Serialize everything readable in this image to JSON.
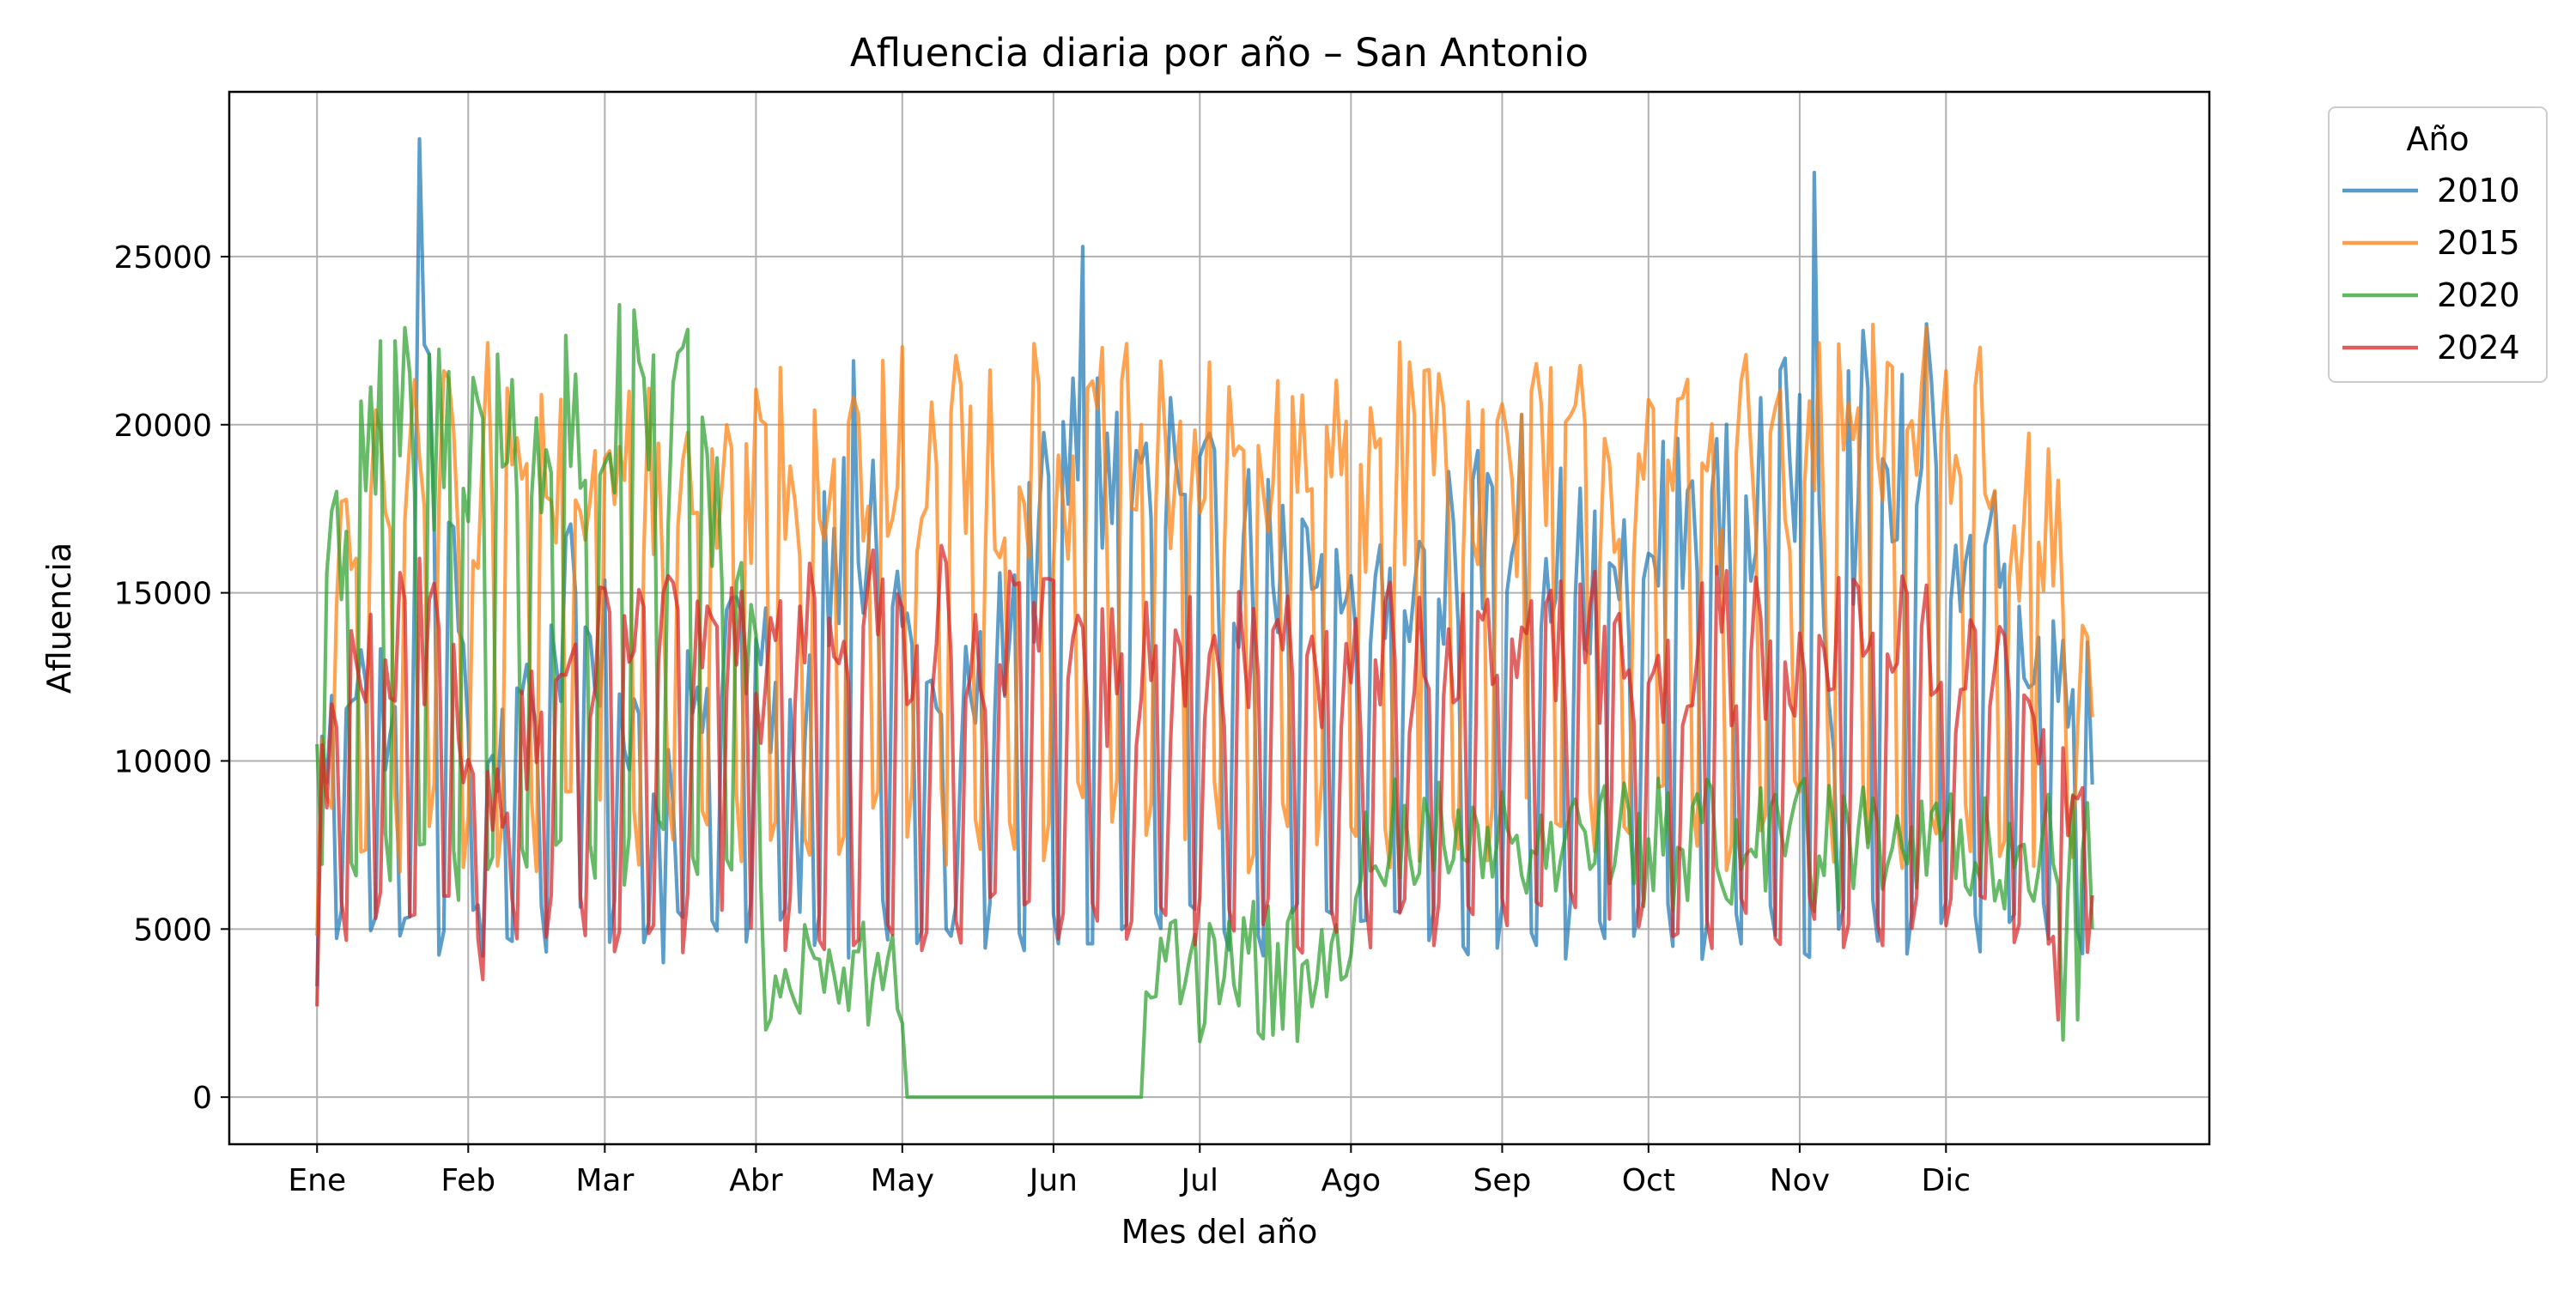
{
  "chart_data": {
    "type": "line",
    "title": "Afluencia diaria por año – San Antonio",
    "xlabel": "Mes del año",
    "ylabel": "Afluencia",
    "x_unit": "day of year",
    "x_ticks": [
      {
        "day": 1,
        "label": "Ene"
      },
      {
        "day": 32,
        "label": "Feb"
      },
      {
        "day": 60,
        "label": "Mar"
      },
      {
        "day": 91,
        "label": "Abr"
      },
      {
        "day": 121,
        "label": "May"
      },
      {
        "day": 152,
        "label": "Jun"
      },
      {
        "day": 182,
        "label": "Jul"
      },
      {
        "day": 213,
        "label": "Ago"
      },
      {
        "day": 244,
        "label": "Sep"
      },
      {
        "day": 274,
        "label": "Oct"
      },
      {
        "day": 305,
        "label": "Nov"
      },
      {
        "day": 335,
        "label": "Dic"
      }
    ],
    "y_ticks": [
      0,
      5000,
      10000,
      15000,
      20000,
      25000
    ],
    "xlim": [
      -17,
      389
    ],
    "ylim": [
      -1400,
      29900
    ],
    "grid": true,
    "legend": {
      "title": "Año",
      "placement": "outside-top-right"
    },
    "series": [
      {
        "name": "2010",
        "color": "#1f77b4",
        "stats": {
          "weekday_level": 14500,
          "weekend_level": 5000
        },
        "anchors": [
          [
            1,
            3300
          ],
          [
            10,
            13300
          ],
          [
            18,
            4800
          ],
          [
            22,
            28500
          ],
          [
            35,
            4200
          ],
          [
            54,
            15000
          ],
          [
            72,
            4000
          ],
          [
            85,
            14500
          ],
          [
            100,
            5500
          ],
          [
            105,
            18000
          ],
          [
            111,
            21900
          ],
          [
            121,
            14000
          ],
          [
            130,
            5000
          ],
          [
            158,
            25300
          ],
          [
            176,
            20800
          ],
          [
            212,
            14800
          ],
          [
            248,
            20300
          ],
          [
            268,
            14800
          ],
          [
            277,
            19500
          ],
          [
            297,
            20800
          ],
          [
            308,
            27500
          ],
          [
            313,
            5000
          ],
          [
            315,
            21600
          ],
          [
            318,
            22800
          ],
          [
            331,
            23000
          ],
          [
            345,
            18000
          ],
          [
            365,
            9300
          ]
        ]
      },
      {
        "name": "2015",
        "color": "#ff7f0e",
        "stats": {
          "weekday_level": 17500,
          "weekend_level": 8000
        },
        "anchors": [
          [
            1,
            4800
          ],
          [
            8,
            15700
          ],
          [
            20,
            19500
          ],
          [
            27,
            21600
          ],
          [
            60,
            19000
          ],
          [
            85,
            20000
          ],
          [
            96,
            21700
          ],
          [
            112,
            20300
          ],
          [
            133,
            21200
          ],
          [
            160,
            21300
          ],
          [
            178,
            20100
          ],
          [
            217,
            20500
          ],
          [
            228,
            21600
          ],
          [
            248,
            20300
          ],
          [
            281,
            20800
          ],
          [
            300,
            20500
          ],
          [
            331,
            22900
          ],
          [
            342,
            22300
          ],
          [
            354,
            16500
          ],
          [
            362,
            11000
          ],
          [
            364,
            13700
          ],
          [
            365,
            11300
          ]
        ]
      },
      {
        "name": "2020",
        "color": "#2ca02c",
        "stats": {
          "weekday_level": 18500,
          "weekend_level": 7000
        },
        "anchors": [
          [
            1,
            10500
          ],
          [
            10,
            20700
          ],
          [
            33,
            21400
          ],
          [
            54,
            21500
          ],
          [
            76,
            22300
          ],
          [
            89,
            12000
          ],
          [
            93,
            2000
          ],
          [
            100,
            2500
          ],
          [
            113,
            5200
          ],
          [
            119,
            4800
          ],
          [
            122,
            0
          ],
          [
            170,
            0
          ],
          [
            173,
            3000
          ],
          [
            180,
            4200
          ],
          [
            200,
            5200
          ],
          [
            220,
            6300
          ],
          [
            245,
            8000
          ],
          [
            270,
            8500
          ],
          [
            300,
            9000
          ],
          [
            330,
            8800
          ],
          [
            356,
            9000
          ],
          [
            359,
            1700
          ],
          [
            362,
            2300
          ],
          [
            365,
            5000
          ]
        ]
      },
      {
        "name": "2024",
        "color": "#d62728",
        "stats": {
          "weekday_level": 13000,
          "weekend_level": 5200
        },
        "anchors": [
          [
            1,
            2700
          ],
          [
            5,
            11000
          ],
          [
            15,
            13000
          ],
          [
            24,
            14800
          ],
          [
            35,
            3500
          ],
          [
            50,
            12400
          ],
          [
            83,
            14000
          ],
          [
            91,
            12000
          ],
          [
            100,
            14600
          ],
          [
            145,
            15300
          ],
          [
            165,
            12000
          ],
          [
            218,
            13000
          ],
          [
            265,
            14000
          ],
          [
            305,
            13800
          ],
          [
            330,
            14000
          ],
          [
            348,
            12000
          ],
          [
            358,
            2300
          ],
          [
            363,
            9200
          ],
          [
            365,
            6000
          ]
        ]
      }
    ]
  }
}
